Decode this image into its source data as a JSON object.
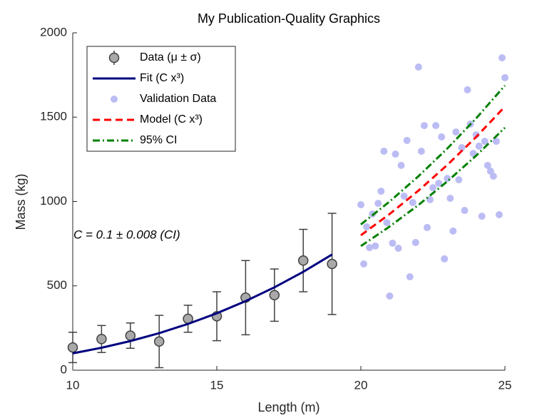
{
  "chart_data": {
    "type": "line",
    "title": "My Publication-Quality Graphics",
    "x_label": "Length (m)",
    "y_label": "Mass (kg)",
    "xlim": [
      10,
      25
    ],
    "ylim": [
      0,
      2000
    ],
    "xticks": [
      10,
      15,
      20,
      25
    ],
    "yticks": [
      0,
      500,
      1000,
      1500,
      2000
    ],
    "grid": false,
    "legend_position": "northwest",
    "annotation": "C = 0.1 ± 0.008 (CI)",
    "series": [
      {
        "name": "Data (μ ± σ)",
        "type": "errorbar",
        "color": "#a9a9a9",
        "edge_color": "#404040",
        "x": [
          10,
          11,
          12,
          13,
          14,
          15,
          16,
          17,
          18,
          19
        ],
        "values": [
          135,
          185,
          205,
          170,
          305,
          320,
          430,
          445,
          650,
          630
        ],
        "errors": [
          90,
          80,
          75,
          155,
          80,
          145,
          220,
          155,
          185,
          300
        ]
      },
      {
        "name": "Fit (C x³)",
        "type": "line",
        "color": "#000080",
        "line_style": "solid",
        "x": [
          10,
          11,
          12,
          13,
          14,
          15,
          16,
          17,
          18,
          19
        ],
        "values": [
          100,
          133.1,
          172.8,
          219.7,
          274.4,
          337.5,
          409.6,
          491.3,
          583.2,
          685.9
        ]
      },
      {
        "name": "Validation Data",
        "type": "scatter",
        "color": "#bcbcf5",
        "x": [
          20,
          20.1,
          20.2,
          20.3,
          20.4,
          20.5,
          20.6,
          20.7,
          20.8,
          20.9,
          21,
          21.1,
          21.2,
          21.3,
          21.4,
          21.5,
          21.6,
          21.7,
          21.8,
          21.9,
          22,
          22.1,
          22.2,
          22.3,
          22.4,
          22.5,
          22.6,
          22.7,
          22.8,
          22.9,
          23,
          23.1,
          23.2,
          23.3,
          23.4,
          23.5,
          23.6,
          23.7,
          23.8,
          23.9,
          24,
          24.1,
          24.2,
          24.3,
          24.4,
          24.5,
          24.6,
          24.7,
          24.8,
          24.9,
          25
        ],
        "values": [
          981,
          630,
          850,
          727,
          926,
          736,
          989,
          1061,
          1298,
          875,
          440,
          753,
          1281,
          723,
          1214,
          1032,
          1362,
          554,
          994,
          757,
          1797,
          1298,
          1450,
          846,
          1011,
          1082,
          1450,
          1108,
          1383,
          660,
          1137,
          1019,
          825,
          1412,
          1129,
          1319,
          947,
          1662,
          1459,
          1285,
          1395,
          1328,
          913,
          1357,
          1214,
          1180,
          1150,
          1357,
          922,
          1852,
          1734
        ]
      },
      {
        "name": "Model (C x³)",
        "type": "line",
        "color": "#ff0000",
        "line_style": "dashed",
        "x": [
          20,
          21,
          22,
          23,
          24,
          25
        ],
        "values": [
          800,
          926.1,
          1064.8,
          1216.7,
          1382.4,
          1562.5
        ]
      },
      {
        "name": "95% CI",
        "type": "band_lines",
        "color": "#008000",
        "line_style": "dashdot",
        "x": [
          20,
          21,
          22,
          23,
          24,
          25
        ],
        "values": [
          864,
          1000.2,
          1150,
          1314,
          1493,
          1687.5
        ],
        "lower_values": [
          736,
          852,
          979.6,
          1119.4,
          1271.8,
          1437.5
        ]
      }
    ]
  }
}
